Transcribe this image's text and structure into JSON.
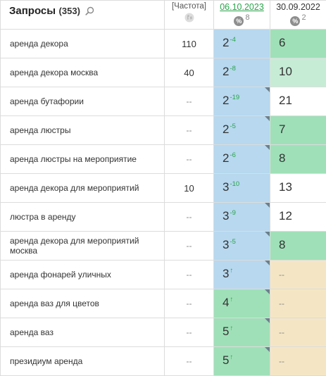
{
  "header": {
    "title": "Запросы",
    "count": "(353)",
    "frequency_label": "[Частота]",
    "date1": "06.10.2023",
    "date1_pct": "8",
    "date2": "30.09.2022",
    "date2_pct": "2",
    "pct_symbol": "%"
  },
  "colors": {
    "blue": "#b7d8ef",
    "green": "#9fe0b8",
    "lightgreen": "#c6ecd6",
    "white": "#ffffff",
    "beige": "#f4e6c5",
    "link": "#2aa34a"
  },
  "rows": [
    {
      "query": "аренда декора",
      "freq": "110",
      "p1": "2",
      "p1_change": "-4",
      "p1_corner": false,
      "p1_color": "blue",
      "p2": "6",
      "p2_color": "green"
    },
    {
      "query": "аренда декора москва",
      "freq": "40",
      "p1": "2",
      "p1_change": "-8",
      "p1_corner": false,
      "p1_color": "blue",
      "p2": "10",
      "p2_color": "lightgreen"
    },
    {
      "query": "аренда бутафории",
      "freq": "--",
      "p1": "2",
      "p1_change": "-19",
      "p1_corner": true,
      "p1_color": "blue",
      "p2": "21",
      "p2_color": "white"
    },
    {
      "query": "аренда люстры",
      "freq": "--",
      "p1": "2",
      "p1_change": "-5",
      "p1_corner": true,
      "p1_color": "blue",
      "p2": "7",
      "p2_color": "green"
    },
    {
      "query": "аренда люстры на мероприятие",
      "freq": "--",
      "p1": "2",
      "p1_change": "-6",
      "p1_corner": true,
      "p1_color": "blue",
      "p2": "8",
      "p2_color": "green"
    },
    {
      "query": "аренда декора для мероприятий",
      "freq": "10",
      "p1": "3",
      "p1_change": "-10",
      "p1_corner": false,
      "p1_color": "blue",
      "p2": "13",
      "p2_color": "white"
    },
    {
      "query": "люстра в аренду",
      "freq": "--",
      "p1": "3",
      "p1_change": "-9",
      "p1_corner": true,
      "p1_color": "blue",
      "p2": "12",
      "p2_color": "white"
    },
    {
      "query": "аренда декора для мероприятий москва",
      "freq": "--",
      "p1": "3",
      "p1_change": "-5",
      "p1_corner": true,
      "p1_color": "blue",
      "p2": "8",
      "p2_color": "green"
    },
    {
      "query": "аренда фонарей уличных",
      "freq": "--",
      "p1": "3",
      "p1_change": "↑",
      "p1_corner": true,
      "p1_color": "blue",
      "p2": "--",
      "p2_color": "beige"
    },
    {
      "query": "аренда ваз для цветов",
      "freq": "--",
      "p1": "4",
      "p1_change": "↑",
      "p1_corner": true,
      "p1_color": "green",
      "p2": "--",
      "p2_color": "beige"
    },
    {
      "query": "аренда ваз",
      "freq": "--",
      "p1": "5",
      "p1_change": "↑",
      "p1_corner": true,
      "p1_color": "green",
      "p2": "--",
      "p2_color": "beige"
    },
    {
      "query": "президиум аренда",
      "freq": "--",
      "p1": "5",
      "p1_change": "↑",
      "p1_corner": true,
      "p1_color": "green",
      "p2": "--",
      "p2_color": "beige"
    }
  ]
}
